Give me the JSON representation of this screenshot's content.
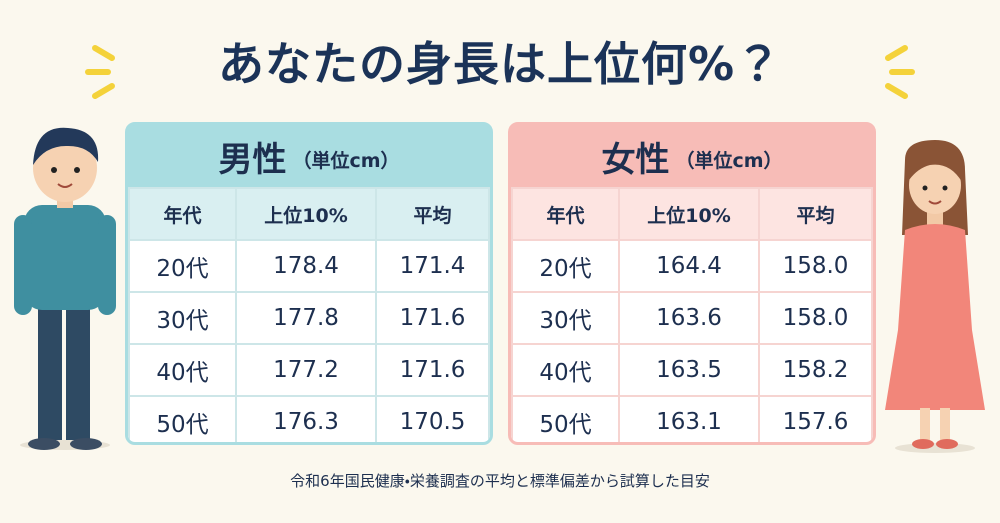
{
  "title": "あなたの身長は上位何%？",
  "tables": [
    {
      "title": "男性",
      "unit": "（単位cm）",
      "header": [
        "年代",
        "上位10%",
        "平均"
      ],
      "rows": [
        [
          "20代",
          "178.4",
          "171.4"
        ],
        [
          "30代",
          "177.8",
          "171.6"
        ],
        [
          "40代",
          "177.2",
          "171.6"
        ],
        [
          "50代",
          "176.3",
          "170.5"
        ]
      ]
    },
    {
      "title": "女性",
      "unit": "（単位cm）",
      "header": [
        "年代",
        "上位10%",
        "平均"
      ],
      "rows": [
        [
          "20代",
          "164.4",
          "158.0"
        ],
        [
          "30代",
          "163.6",
          "158.0"
        ],
        [
          "40代",
          "163.5",
          "158.2"
        ],
        [
          "50代",
          "163.1",
          "157.6"
        ]
      ]
    }
  ],
  "note": "令和6年国民健康・栄養調査の平均と標準偏差から試算した目安"
}
